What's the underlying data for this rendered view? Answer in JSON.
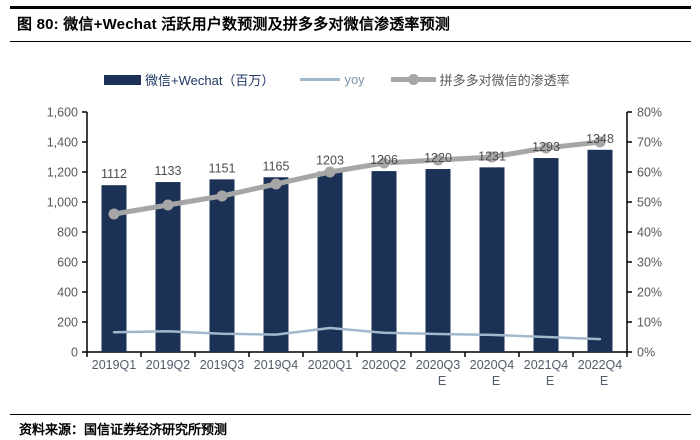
{
  "header": {
    "title": "图 80:  微信+Wechat 活跃用户数预测及拼多多对微信渗透率预测"
  },
  "footer": {
    "source": "资料来源：国信证券经济研究所预测"
  },
  "legend": [
    {
      "label": "微信+Wechat（百万）",
      "type": "bar"
    },
    {
      "label": "yoy",
      "type": "line"
    },
    {
      "label": "拼多多对微信的渗透率",
      "type": "line-marker"
    }
  ],
  "colors": {
    "bar": "#1b3156",
    "yoy": "#a3b8cc",
    "penetration": "#a6a6a6",
    "axis_line": "#000000",
    "axis_label": "#595959",
    "x_label": "#515c6a",
    "value_label": "#4d4d4d"
  },
  "chart_data": {
    "type": "bar",
    "title": "微信+Wechat 活跃用户数预测及拼多多对微信渗透率预测",
    "categories": [
      {
        "name": "2019Q1",
        "suffix": ""
      },
      {
        "name": "2019Q2",
        "suffix": ""
      },
      {
        "name": "2019Q3",
        "suffix": ""
      },
      {
        "name": "2019Q4",
        "suffix": ""
      },
      {
        "name": "2020Q1",
        "suffix": ""
      },
      {
        "name": "2020Q2",
        "suffix": ""
      },
      {
        "name": "2020Q3",
        "suffix": "E"
      },
      {
        "name": "2020Q4",
        "suffix": "E"
      },
      {
        "name": "2021Q4",
        "suffix": "E"
      },
      {
        "name": "2022Q4",
        "suffix": "E"
      }
    ],
    "series": [
      {
        "name": "微信+Wechat（百万）",
        "type": "bar",
        "axis": "left",
        "values": [
          1112,
          1133,
          1151,
          1165,
          1203,
          1206,
          1220,
          1231,
          1293,
          1348
        ],
        "show_value_labels": true
      },
      {
        "name": "yoy",
        "type": "line",
        "axis": "right",
        "values": [
          6.6,
          6.9,
          6.1,
          5.8,
          8.0,
          6.4,
          6.0,
          5.7,
          5.0,
          4.3
        ],
        "markers": false
      },
      {
        "name": "拼多多对微信的渗透率",
        "type": "line",
        "axis": "right",
        "values": [
          46,
          49,
          52,
          56,
          60,
          63,
          64,
          65,
          68,
          70
        ],
        "markers": true
      }
    ],
    "left_axis": {
      "min": 0,
      "max": 1600,
      "step": 200,
      "format": "thousands"
    },
    "right_axis": {
      "min": 0,
      "max": 80,
      "step": 10,
      "format": "percent"
    },
    "grid": false,
    "legend_position": "top"
  }
}
